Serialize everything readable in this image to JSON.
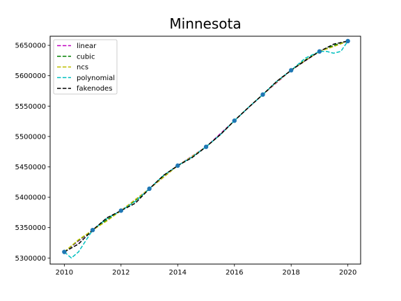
{
  "chart_data": {
    "type": "line",
    "title": "Minnesota",
    "xlabel": "",
    "ylabel": "",
    "xlim": [
      2009.5,
      2020.45
    ],
    "ylim": [
      5290000,
      5665000
    ],
    "xticks": [
      2010,
      2012,
      2014,
      2016,
      2018,
      2020
    ],
    "yticks": [
      5300000,
      5350000,
      5400000,
      5450000,
      5500000,
      5550000,
      5600000,
      5650000
    ],
    "grid": false,
    "legend_position": "top-left",
    "data_points": {
      "x": [
        2010,
        2011,
        2012,
        2013,
        2014,
        2015,
        2016,
        2017,
        2018,
        2019,
        2020
      ],
      "y": [
        5310000,
        5346000,
        5378000,
        5414000,
        5452000,
        5483000,
        5526000,
        5569000,
        5609000,
        5640000,
        5657000
      ],
      "color": "#1f77b4"
    },
    "series": [
      {
        "name": "linear",
        "color": "#bf00bf",
        "x": [
          2010,
          2011,
          2012,
          2013,
          2014,
          2015,
          2016,
          2017,
          2018,
          2019,
          2020
        ],
        "y": [
          5310000,
          5346000,
          5378000,
          5414000,
          5452000,
          5483000,
          5526000,
          5569000,
          5609000,
          5640000,
          5657000
        ]
      },
      {
        "name": "cubic",
        "color": "#008000",
        "x": [
          2010,
          2010.5,
          2011,
          2011.5,
          2012,
          2012.5,
          2013,
          2013.5,
          2014,
          2014.5,
          2015,
          2015.5,
          2016,
          2016.5,
          2017,
          2017.5,
          2018,
          2018.5,
          2019,
          2019.5,
          2020
        ],
        "y": [
          5310000,
          5329000,
          5346000,
          5363000,
          5378000,
          5394000,
          5414000,
          5434000,
          5452000,
          5466000,
          5483000,
          5503000,
          5526000,
          5548000,
          5569000,
          5590000,
          5609000,
          5626000,
          5640000,
          5650000,
          5657000
        ]
      },
      {
        "name": "ncs",
        "color": "#bfbf00",
        "x": [
          2010,
          2010.5,
          2011,
          2011.5,
          2012,
          2012.5,
          2013,
          2013.5,
          2014,
          2014.5,
          2015,
          2015.5,
          2016,
          2016.5,
          2017,
          2017.5,
          2018,
          2018.5,
          2019,
          2019.5,
          2020
        ],
        "y": [
          5310000,
          5330000,
          5346000,
          5361000,
          5378000,
          5396000,
          5414000,
          5433000,
          5452000,
          5467000,
          5483000,
          5503000,
          5526000,
          5548000,
          5569000,
          5590000,
          5609000,
          5625000,
          5640000,
          5648000,
          5657000
        ]
      },
      {
        "name": "polynomial",
        "color": "#00bfbf",
        "x": [
          2010,
          2010.25,
          2010.5,
          2010.75,
          2011,
          2011.5,
          2012,
          2012.5,
          2013,
          2013.5,
          2014,
          2014.5,
          2015,
          2015.5,
          2016,
          2016.5,
          2017,
          2017.5,
          2018,
          2018.5,
          2019,
          2019.25,
          2019.5,
          2019.75,
          2020
        ],
        "y": [
          5310000,
          5300000,
          5310000,
          5328000,
          5346000,
          5365000,
          5378000,
          5393000,
          5414000,
          5436000,
          5452000,
          5466000,
          5483000,
          5503000,
          5526000,
          5548000,
          5569000,
          5591000,
          5609000,
          5629000,
          5640000,
          5640000,
          5637000,
          5640000,
          5657000
        ]
      },
      {
        "name": "fakenodes",
        "color": "#000000",
        "x": [
          2010,
          2010.5,
          2011,
          2011.5,
          2012,
          2012.5,
          2013,
          2013.5,
          2014,
          2014.5,
          2015,
          2015.5,
          2016,
          2016.5,
          2017,
          2017.5,
          2018,
          2018.5,
          2019,
          2019.5,
          2020
        ],
        "y": [
          5310000,
          5323000,
          5346000,
          5366000,
          5378000,
          5390000,
          5414000,
          5436000,
          5452000,
          5465000,
          5483000,
          5503000,
          5526000,
          5548000,
          5569000,
          5591000,
          5609000,
          5625000,
          5640000,
          5652000,
          5657000
        ]
      }
    ]
  }
}
